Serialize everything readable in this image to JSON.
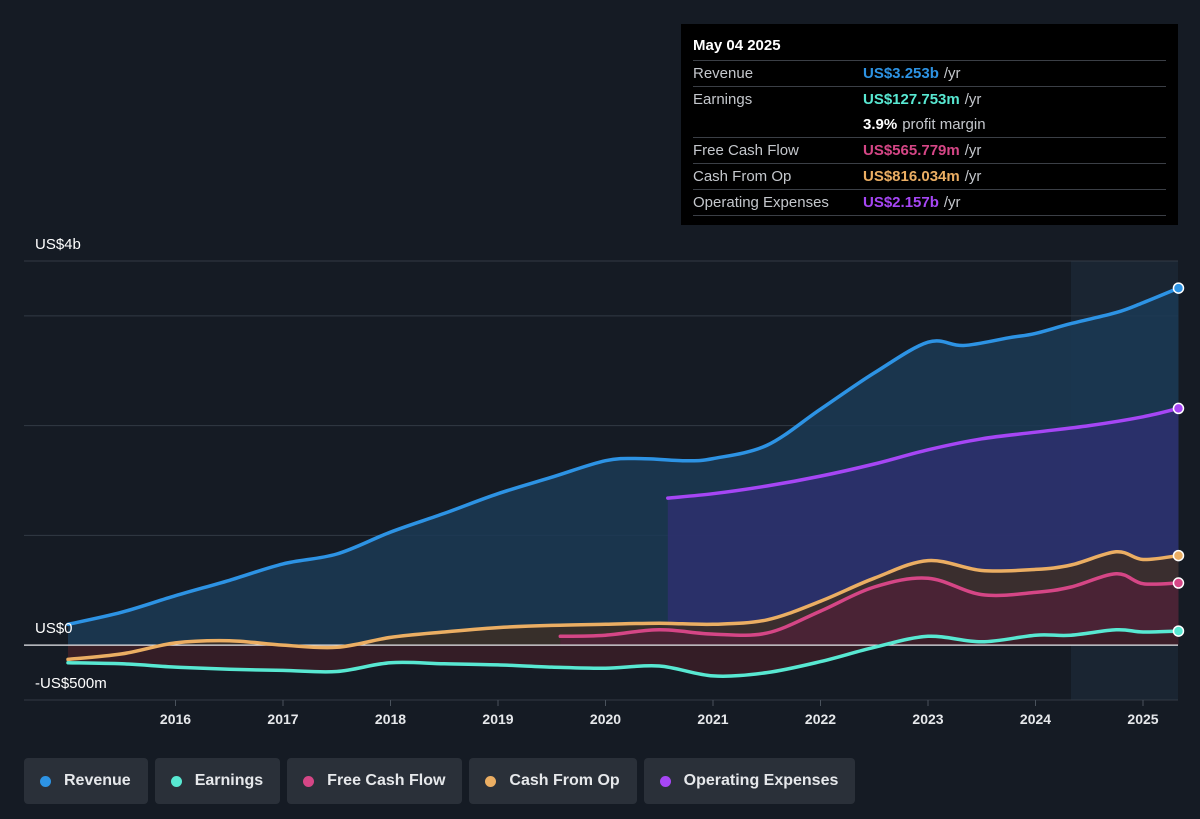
{
  "chart_data": {
    "type": "area",
    "x_range": [
      2015.0,
      2025.37
    ],
    "ylim": [
      -500,
      3500
    ],
    "y_unit": "US$ millions",
    "y_tick_labels": [
      {
        "value": 3500,
        "label": "US$4b"
      },
      {
        "value": 0,
        "label": "US$0"
      },
      {
        "value": -500,
        "label": "-US$500m"
      }
    ],
    "gridlines": [
      3500,
      3000,
      2000,
      1000,
      0,
      -500
    ],
    "x_ticks": [
      "2016",
      "2017",
      "2018",
      "2019",
      "2020",
      "2021",
      "2022",
      "2023",
      "2024",
      "2025"
    ],
    "highlight_range": [
      2024.33,
      2025.37
    ],
    "series": [
      {
        "name": "Revenue",
        "color": "#2d93e4",
        "fill": "#1b3a55",
        "endpoint": true,
        "points": [
          [
            2015.0,
            190
          ],
          [
            2015.5,
            300
          ],
          [
            2016.0,
            450
          ],
          [
            2016.5,
            590
          ],
          [
            2017.0,
            740
          ],
          [
            2017.5,
            830
          ],
          [
            2018.0,
            1030
          ],
          [
            2018.5,
            1200
          ],
          [
            2019.0,
            1380
          ],
          [
            2019.5,
            1530
          ],
          [
            2020.0,
            1680
          ],
          [
            2020.33,
            1700
          ],
          [
            2020.75,
            1680
          ],
          [
            2021.0,
            1700
          ],
          [
            2021.5,
            1820
          ],
          [
            2022.0,
            2150
          ],
          [
            2022.5,
            2480
          ],
          [
            2023.0,
            2760
          ],
          [
            2023.33,
            2730
          ],
          [
            2023.75,
            2800
          ],
          [
            2024.0,
            2840
          ],
          [
            2024.33,
            2930
          ],
          [
            2024.75,
            3030
          ],
          [
            2025.0,
            3120
          ],
          [
            2025.33,
            3253
          ]
        ]
      },
      {
        "name": "Operating Expenses",
        "color": "#a646f5",
        "fill": "#2e2f6e",
        "endpoint": true,
        "points": [
          [
            2020.58,
            1340
          ],
          [
            2021.0,
            1380
          ],
          [
            2021.5,
            1450
          ],
          [
            2022.0,
            1540
          ],
          [
            2022.5,
            1650
          ],
          [
            2023.0,
            1780
          ],
          [
            2023.5,
            1880
          ],
          [
            2024.0,
            1940
          ],
          [
            2024.5,
            2000
          ],
          [
            2025.0,
            2080
          ],
          [
            2025.33,
            2157
          ]
        ]
      },
      {
        "name": "Cash From Op",
        "color": "#ebae63",
        "fill": "#3d2e25",
        "endpoint": true,
        "points": [
          [
            2015.0,
            -130
          ],
          [
            2015.5,
            -80
          ],
          [
            2016.0,
            20
          ],
          [
            2016.5,
            40
          ],
          [
            2017.0,
            0
          ],
          [
            2017.5,
            -20
          ],
          [
            2018.0,
            70
          ],
          [
            2018.5,
            120
          ],
          [
            2019.0,
            160
          ],
          [
            2019.5,
            180
          ],
          [
            2020.0,
            190
          ],
          [
            2020.5,
            200
          ],
          [
            2021.0,
            190
          ],
          [
            2021.5,
            230
          ],
          [
            2022.0,
            400
          ],
          [
            2022.5,
            610
          ],
          [
            2023.0,
            770
          ],
          [
            2023.5,
            680
          ],
          [
            2024.0,
            690
          ],
          [
            2024.33,
            730
          ],
          [
            2024.75,
            850
          ],
          [
            2025.0,
            780
          ],
          [
            2025.33,
            816
          ]
        ]
      },
      {
        "name": "Free Cash Flow",
        "color": "#d54686",
        "fill": "#4d2136",
        "endpoint": true,
        "points": [
          [
            2019.58,
            80
          ],
          [
            2020.0,
            90
          ],
          [
            2020.5,
            140
          ],
          [
            2021.0,
            100
          ],
          [
            2021.5,
            110
          ],
          [
            2022.0,
            310
          ],
          [
            2022.5,
            530
          ],
          [
            2023.0,
            610
          ],
          [
            2023.5,
            460
          ],
          [
            2024.0,
            480
          ],
          [
            2024.33,
            530
          ],
          [
            2024.75,
            650
          ],
          [
            2025.0,
            560
          ],
          [
            2025.33,
            566
          ]
        ]
      },
      {
        "name": "Earnings",
        "color": "#58e8d2",
        "fill": "#3a1d27",
        "endpoint": true,
        "points": [
          [
            2015.0,
            -160
          ],
          [
            2015.5,
            -170
          ],
          [
            2016.0,
            -200
          ],
          [
            2016.5,
            -220
          ],
          [
            2017.0,
            -230
          ],
          [
            2017.5,
            -240
          ],
          [
            2018.0,
            -160
          ],
          [
            2018.5,
            -170
          ],
          [
            2019.0,
            -180
          ],
          [
            2019.5,
            -200
          ],
          [
            2020.0,
            -210
          ],
          [
            2020.5,
            -190
          ],
          [
            2021.0,
            -280
          ],
          [
            2021.5,
            -250
          ],
          [
            2022.0,
            -150
          ],
          [
            2022.5,
            -20
          ],
          [
            2023.0,
            80
          ],
          [
            2023.5,
            30
          ],
          [
            2024.0,
            90
          ],
          [
            2024.33,
            90
          ],
          [
            2024.75,
            140
          ],
          [
            2025.0,
            120
          ],
          [
            2025.33,
            128
          ]
        ]
      }
    ]
  },
  "tooltip": {
    "date": "May 04 2025",
    "rows": [
      {
        "label": "Revenue",
        "value": "US$3.253b",
        "unit": "/yr",
        "color": "#2d93e4"
      },
      {
        "label": "Earnings",
        "value": "US$127.753m",
        "unit": "/yr",
        "color": "#58e8d2"
      },
      {
        "label": "",
        "value": "3.9%",
        "unit": "profit margin",
        "color": "#ffffff"
      },
      {
        "label": "Free Cash Flow",
        "value": "US$565.779m",
        "unit": "/yr",
        "color": "#d54686"
      },
      {
        "label": "Cash From Op",
        "value": "US$816.034m",
        "unit": "/yr",
        "color": "#ebae63"
      },
      {
        "label": "Operating Expenses",
        "value": "US$2.157b",
        "unit": "/yr",
        "color": "#a646f5"
      }
    ]
  },
  "legend": {
    "items": [
      {
        "label": "Revenue",
        "color": "#2d93e4"
      },
      {
        "label": "Earnings",
        "color": "#58e8d2"
      },
      {
        "label": "Free Cash Flow",
        "color": "#d54686"
      },
      {
        "label": "Cash From Op",
        "color": "#ebae63"
      },
      {
        "label": "Operating Expenses",
        "color": "#a646f5"
      }
    ]
  }
}
